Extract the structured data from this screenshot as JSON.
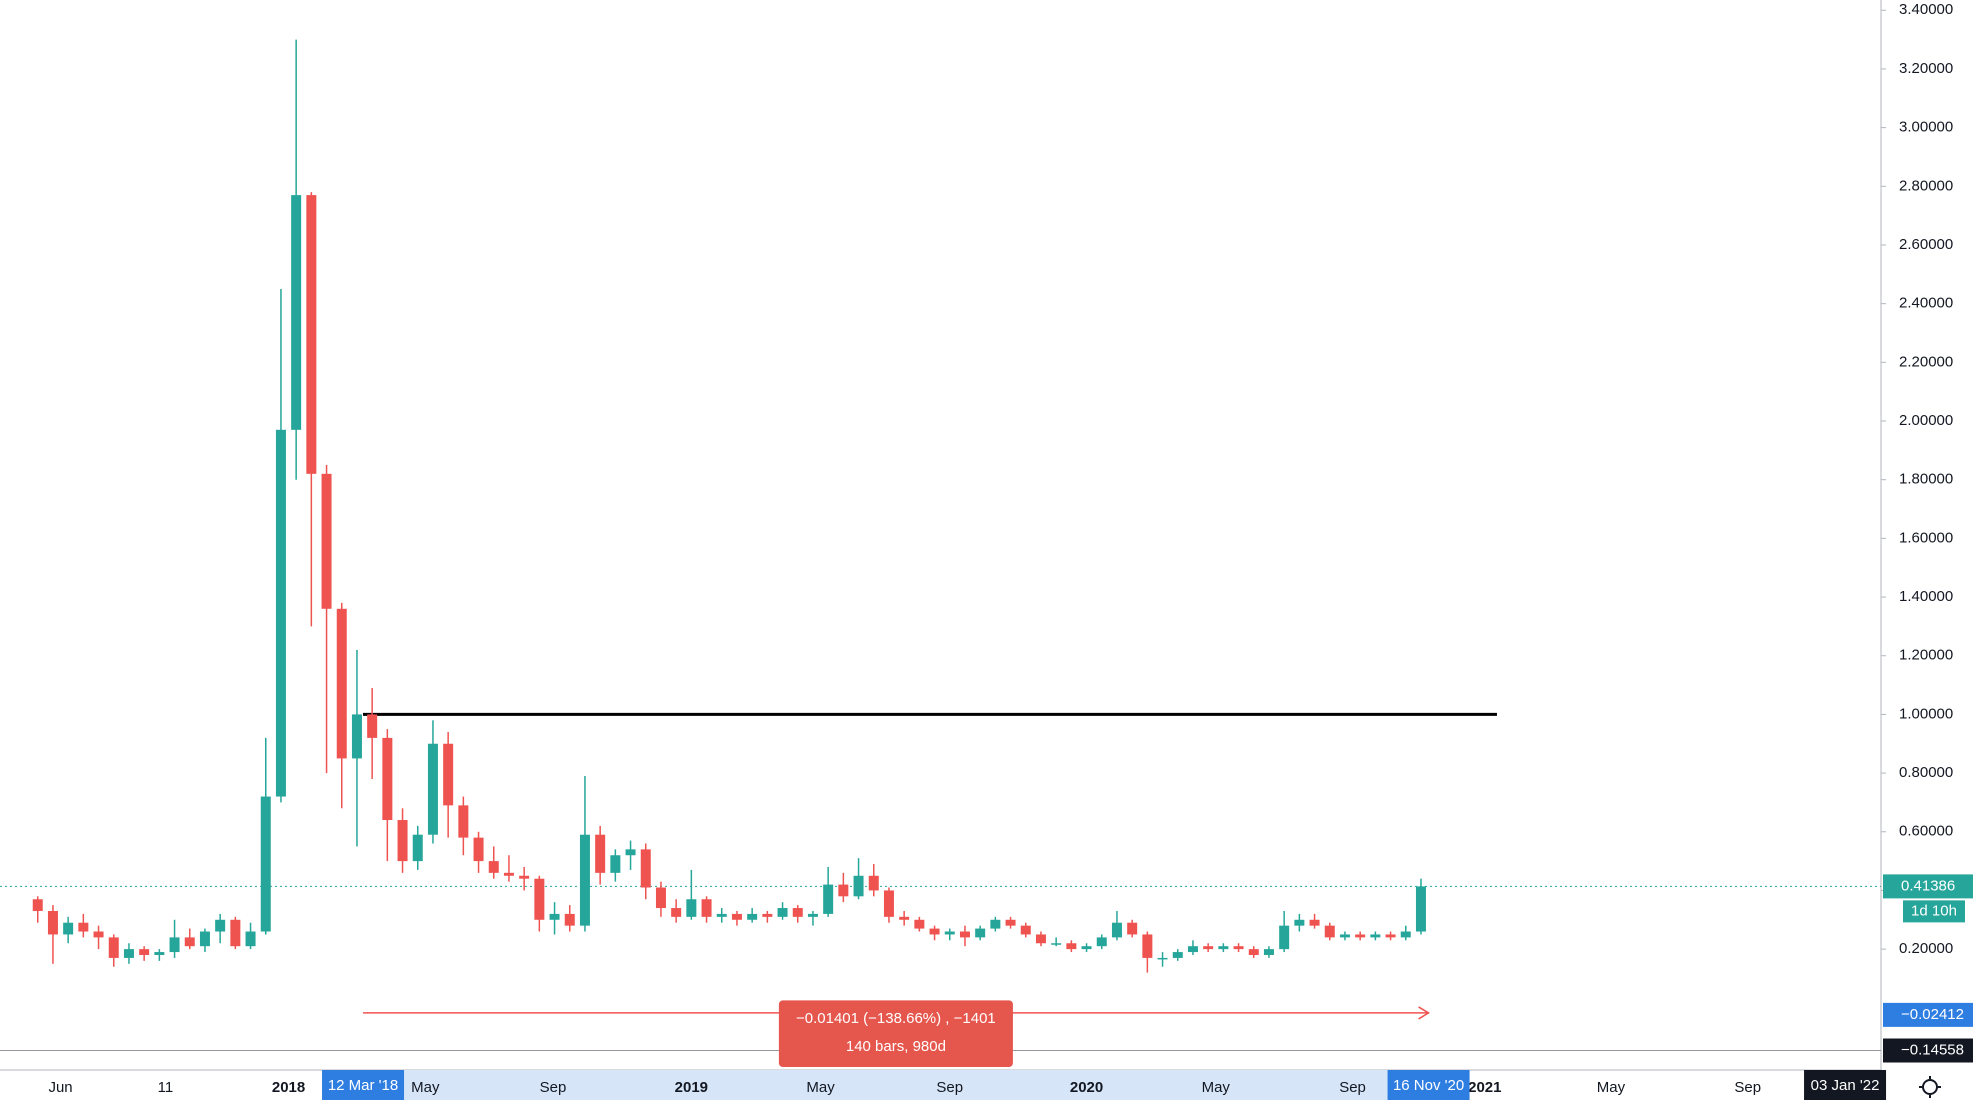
{
  "chart_data": {
    "type": "candlestick",
    "candles": [
      [
        0.37,
        0.38,
        0.29,
        0.33
      ],
      [
        0.33,
        0.35,
        0.15,
        0.25
      ],
      [
        0.25,
        0.31,
        0.22,
        0.29
      ],
      [
        0.29,
        0.32,
        0.24,
        0.26
      ],
      [
        0.26,
        0.28,
        0.2,
        0.24
      ],
      [
        0.24,
        0.25,
        0.14,
        0.17
      ],
      [
        0.17,
        0.22,
        0.15,
        0.2
      ],
      [
        0.2,
        0.21,
        0.16,
        0.18
      ],
      [
        0.18,
        0.2,
        0.16,
        0.19
      ],
      [
        0.19,
        0.3,
        0.17,
        0.24
      ],
      [
        0.24,
        0.27,
        0.2,
        0.21
      ],
      [
        0.21,
        0.27,
        0.19,
        0.26
      ],
      [
        0.26,
        0.32,
        0.22,
        0.3
      ],
      [
        0.3,
        0.31,
        0.2,
        0.21
      ],
      [
        0.21,
        0.29,
        0.2,
        0.26
      ],
      [
        0.26,
        0.92,
        0.25,
        0.72
      ],
      [
        0.72,
        2.45,
        0.7,
        1.97
      ],
      [
        1.97,
        3.3,
        1.8,
        2.77
      ],
      [
        2.77,
        2.78,
        1.3,
        1.82
      ],
      [
        1.82,
        1.85,
        0.8,
        1.36
      ],
      [
        1.36,
        1.38,
        0.68,
        0.85
      ],
      [
        0.85,
        1.22,
        0.55,
        1.0
      ],
      [
        1.0,
        1.09,
        0.78,
        0.92
      ],
      [
        0.92,
        0.95,
        0.5,
        0.64
      ],
      [
        0.64,
        0.68,
        0.46,
        0.5
      ],
      [
        0.5,
        0.62,
        0.47,
        0.59
      ],
      [
        0.59,
        0.98,
        0.56,
        0.9
      ],
      [
        0.9,
        0.94,
        0.58,
        0.69
      ],
      [
        0.69,
        0.72,
        0.52,
        0.58
      ],
      [
        0.58,
        0.6,
        0.46,
        0.5
      ],
      [
        0.5,
        0.55,
        0.44,
        0.46
      ],
      [
        0.46,
        0.52,
        0.43,
        0.45
      ],
      [
        0.45,
        0.48,
        0.4,
        0.44
      ],
      [
        0.44,
        0.45,
        0.26,
        0.3
      ],
      [
        0.3,
        0.36,
        0.25,
        0.32
      ],
      [
        0.32,
        0.35,
        0.26,
        0.28
      ],
      [
        0.28,
        0.79,
        0.26,
        0.59
      ],
      [
        0.59,
        0.62,
        0.42,
        0.46
      ],
      [
        0.46,
        0.54,
        0.43,
        0.52
      ],
      [
        0.52,
        0.57,
        0.47,
        0.54
      ],
      [
        0.54,
        0.56,
        0.37,
        0.41
      ],
      [
        0.41,
        0.43,
        0.31,
        0.34
      ],
      [
        0.34,
        0.37,
        0.29,
        0.31
      ],
      [
        0.31,
        0.47,
        0.3,
        0.37
      ],
      [
        0.37,
        0.38,
        0.29,
        0.31
      ],
      [
        0.31,
        0.34,
        0.29,
        0.32
      ],
      [
        0.32,
        0.33,
        0.28,
        0.3
      ],
      [
        0.3,
        0.34,
        0.29,
        0.32
      ],
      [
        0.32,
        0.33,
        0.29,
        0.31
      ],
      [
        0.31,
        0.36,
        0.3,
        0.34
      ],
      [
        0.34,
        0.35,
        0.29,
        0.31
      ],
      [
        0.31,
        0.33,
        0.28,
        0.32
      ],
      [
        0.32,
        0.48,
        0.31,
        0.42
      ],
      [
        0.42,
        0.46,
        0.36,
        0.38
      ],
      [
        0.38,
        0.51,
        0.37,
        0.45
      ],
      [
        0.45,
        0.49,
        0.38,
        0.4
      ],
      [
        0.4,
        0.41,
        0.29,
        0.31
      ],
      [
        0.31,
        0.33,
        0.28,
        0.3
      ],
      [
        0.3,
        0.31,
        0.26,
        0.27
      ],
      [
        0.27,
        0.28,
        0.23,
        0.25
      ],
      [
        0.25,
        0.27,
        0.23,
        0.26
      ],
      [
        0.26,
        0.28,
        0.21,
        0.24
      ],
      [
        0.24,
        0.28,
        0.23,
        0.27
      ],
      [
        0.27,
        0.31,
        0.26,
        0.3
      ],
      [
        0.3,
        0.31,
        0.27,
        0.28
      ],
      [
        0.28,
        0.29,
        0.24,
        0.25
      ],
      [
        0.25,
        0.26,
        0.21,
        0.22
      ],
      [
        0.22,
        0.24,
        0.21,
        0.22
      ],
      [
        0.22,
        0.23,
        0.19,
        0.2
      ],
      [
        0.2,
        0.22,
        0.19,
        0.21
      ],
      [
        0.21,
        0.25,
        0.2,
        0.24
      ],
      [
        0.24,
        0.33,
        0.23,
        0.29
      ],
      [
        0.29,
        0.3,
        0.24,
        0.25
      ],
      [
        0.25,
        0.26,
        0.12,
        0.17
      ],
      [
        0.17,
        0.19,
        0.14,
        0.17
      ],
      [
        0.17,
        0.2,
        0.16,
        0.19
      ],
      [
        0.19,
        0.23,
        0.18,
        0.21
      ],
      [
        0.21,
        0.22,
        0.19,
        0.2
      ],
      [
        0.2,
        0.22,
        0.19,
        0.21
      ],
      [
        0.21,
        0.22,
        0.19,
        0.2
      ],
      [
        0.2,
        0.21,
        0.17,
        0.18
      ],
      [
        0.18,
        0.21,
        0.17,
        0.2
      ],
      [
        0.2,
        0.33,
        0.19,
        0.28
      ],
      [
        0.28,
        0.32,
        0.26,
        0.3
      ],
      [
        0.3,
        0.32,
        0.27,
        0.28
      ],
      [
        0.28,
        0.29,
        0.23,
        0.24
      ],
      [
        0.24,
        0.26,
        0.23,
        0.25
      ],
      [
        0.25,
        0.26,
        0.23,
        0.24
      ],
      [
        0.24,
        0.26,
        0.23,
        0.25
      ],
      [
        0.25,
        0.26,
        0.23,
        0.24
      ],
      [
        0.24,
        0.28,
        0.23,
        0.26
      ],
      [
        0.26,
        0.44,
        0.25,
        0.41386
      ]
    ],
    "up_color": "#26a69a",
    "down_color": "#ef5350",
    "ylim": [
      -0.212,
      3.435
    ],
    "yticks": [
      {
        "value": 0.2,
        "label": "0.20000"
      },
      {
        "value": 0.4,
        "label": "0.40000"
      },
      {
        "value": 0.6,
        "label": "0.60000"
      },
      {
        "value": 0.8,
        "label": "0.80000"
      },
      {
        "value": 1.0,
        "label": "1.00000"
      },
      {
        "value": 1.2,
        "label": "1.20000"
      },
      {
        "value": 1.4,
        "label": "1.40000"
      },
      {
        "value": 1.6,
        "label": "1.60000"
      },
      {
        "value": 1.8,
        "label": "1.80000"
      },
      {
        "value": 2.0,
        "label": "2.00000"
      },
      {
        "value": 2.2,
        "label": "2.20000"
      },
      {
        "value": 2.4,
        "label": "2.40000"
      },
      {
        "value": 2.6,
        "label": "2.60000"
      },
      {
        "value": 2.8,
        "label": "2.80000"
      },
      {
        "value": 3.0,
        "label": "3.00000"
      },
      {
        "value": 3.2,
        "label": "3.20000"
      },
      {
        "value": 3.4,
        "label": "3.40000"
      }
    ],
    "xticks": [
      {
        "value": 1.5,
        "label": "Jun"
      },
      {
        "value": 8.4,
        "label": "11"
      },
      {
        "value": 16.5,
        "label": "2018"
      },
      {
        "value": 25.5,
        "label": "May"
      },
      {
        "value": 33.9,
        "label": "Sep"
      },
      {
        "value": 43,
        "label": "2019"
      },
      {
        "value": 51.5,
        "label": "May"
      },
      {
        "value": 60,
        "label": "Sep"
      },
      {
        "value": 69,
        "label": "2020"
      },
      {
        "value": 77.5,
        "label": "May"
      },
      {
        "value": 86.5,
        "label": "Sep"
      },
      {
        "value": 95.2,
        "label": "2021"
      },
      {
        "value": 103.5,
        "label": "May"
      },
      {
        "value": 112.5,
        "label": "Sep"
      }
    ],
    "range_labels": [
      {
        "value": 21.4,
        "label": "12 Mar '18"
      },
      {
        "value": 91.5,
        "label": "16 Nov '20"
      },
      {
        "value": 118.9,
        "label": "03 Jan '22"
      }
    ],
    "last_price": 0.41386,
    "countdown": "1d 10h",
    "hline": 1,
    "crosshair_prices": [
      {
        "value": -0.02412,
        "label": "−0.02412"
      },
      {
        "value": -0.14558,
        "label": "−0.14558"
      }
    ],
    "measure": {
      "line1": "−0.01401 (−138.66%) , −1401",
      "line2": "140 bars, 980d"
    }
  }
}
